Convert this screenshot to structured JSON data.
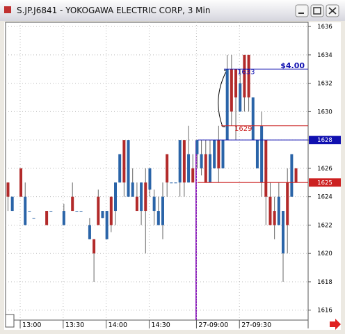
{
  "window_title": "S.JP.J6841 - YOKOGAWA ELECTRIC CORP, 3 Min",
  "chart_data": {
    "type": "candlestick",
    "categories": [
      null,
      null,
      null,
      "13:00",
      null,
      null,
      null,
      null,
      null,
      null,
      null,
      null,
      null,
      "13:30",
      null,
      null,
      null,
      null,
      null,
      null,
      null,
      null,
      null,
      "14:00",
      null,
      null,
      null,
      null,
      null,
      null,
      null,
      null,
      null,
      "14:30",
      null,
      null,
      null,
      null,
      null,
      null,
      null,
      null,
      null,
      null,
      "27-09:00",
      null,
      null,
      null,
      null,
      null,
      null,
      null,
      null,
      null,
      "27-09:30",
      null,
      null,
      null,
      null,
      null,
      null,
      null,
      null,
      null,
      null,
      null,
      null,
      null
    ],
    "series": [
      {
        "open": [
          1624,
          1624,
          null,
          1624,
          1624,
          1623,
          1622.5,
          null,
          null,
          1622,
          1623,
          null,
          null,
          1623,
          null,
          1623,
          1623,
          1623,
          null,
          1622,
          1620,
          1622,
          1623,
          1623,
          1622,
          1625,
          1627,
          1625,
          1628,
          1625,
          1623,
          1625,
          1623,
          1626,
          1624,
          1623,
          1624,
          1625,
          1625,
          1625,
          1628,
          1625,
          1627,
          1625,
          1628,
          1627,
          1625,
          1627,
          1628,
          1626,
          1628,
          1633,
          1630,
          1631,
          1632,
          1631,
          1631,
          1631,
          1628,
          1629,
          1624,
          1622,
          1622,
          1624,
          1623,
          1622,
          1627,
          1625
        ],
        "high": [
          1625,
          1624,
          null,
          1626,
          1625,
          1623,
          1622.5,
          null,
          null,
          1623,
          1623,
          null,
          null,
          1623.5,
          null,
          1625,
          1623,
          1623,
          null,
          1622.5,
          1621,
          1624.5,
          1623,
          1623,
          1624,
          1625,
          1627,
          1628,
          1628,
          1626,
          1625,
          1625,
          1626,
          1626,
          1624.5,
          1624,
          1625,
          1627,
          1625,
          1625,
          1628,
          1628,
          1629,
          1627,
          1628,
          1628,
          1628,
          1628,
          1628,
          1629,
          1628,
          1634,
          1634,
          1633,
          1633,
          1634,
          1634,
          1631,
          1628,
          1630,
          1628,
          1625,
          1624,
          1625,
          1623,
          1626,
          1627,
          1626
        ],
        "low": [
          1623,
          1623,
          null,
          1624,
          1622,
          1623,
          1622.5,
          null,
          null,
          1622,
          1623,
          null,
          null,
          1622,
          null,
          1623,
          1623,
          1623,
          null,
          1621,
          1618,
          1622,
          1622.5,
          1621,
          1621.5,
          1622,
          1625,
          1624,
          1624,
          1624,
          1623,
          1622,
          1620,
          1624,
          1622,
          1622,
          1621,
          1624,
          1625,
          1625,
          1624,
          1624,
          1625,
          1625,
          1626,
          1625.5,
          1625,
          1625,
          1626,
          1625,
          1626,
          1628,
          1629,
          1628,
          1630,
          1630,
          1630,
          1628,
          1626,
          1624,
          1622,
          1622,
          1621,
          1622,
          1618,
          1620,
          1624,
          1625
        ],
        "close": [
          1625,
          1623,
          null,
          1626,
          1622,
          1623,
          1622.5,
          null,
          null,
          1623,
          1623,
          null,
          null,
          1622,
          null,
          1624,
          1623,
          1623,
          null,
          1621,
          1621,
          1624,
          1622.5,
          1621,
          1624,
          1623,
          1625,
          1628,
          1624,
          1624,
          1624,
          1623,
          1625,
          1624.5,
          1623,
          1622,
          1622,
          1627,
          1625,
          1625,
          1625,
          1628,
          1625,
          1626,
          1627,
          1626,
          1627,
          1625,
          1626,
          1628,
          1626,
          1628,
          1633,
          1633,
          1630,
          1634,
          1634,
          1628,
          1626,
          1625,
          1628,
          1624,
          1623,
          1622,
          1620,
          1625,
          1624,
          1626
        ]
      }
    ],
    "up_color": "#b22a2a",
    "down_color": "#2a64a8",
    "ylim": [
      1615.3,
      1636.3
    ],
    "yticks": [
      1616,
      1618,
      1620,
      1622,
      1624,
      1626,
      1628,
      1630,
      1632,
      1634,
      1636
    ],
    "grid": true,
    "price_lines": [
      {
        "value": 1633,
        "color": "#1010b0"
      },
      {
        "value": 1629,
        "color": "#cc2020"
      },
      {
        "value": 1628,
        "color": "#1010b0"
      },
      {
        "value": 1625,
        "color": "#cc2020"
      }
    ],
    "annotation": "$4.00"
  }
}
